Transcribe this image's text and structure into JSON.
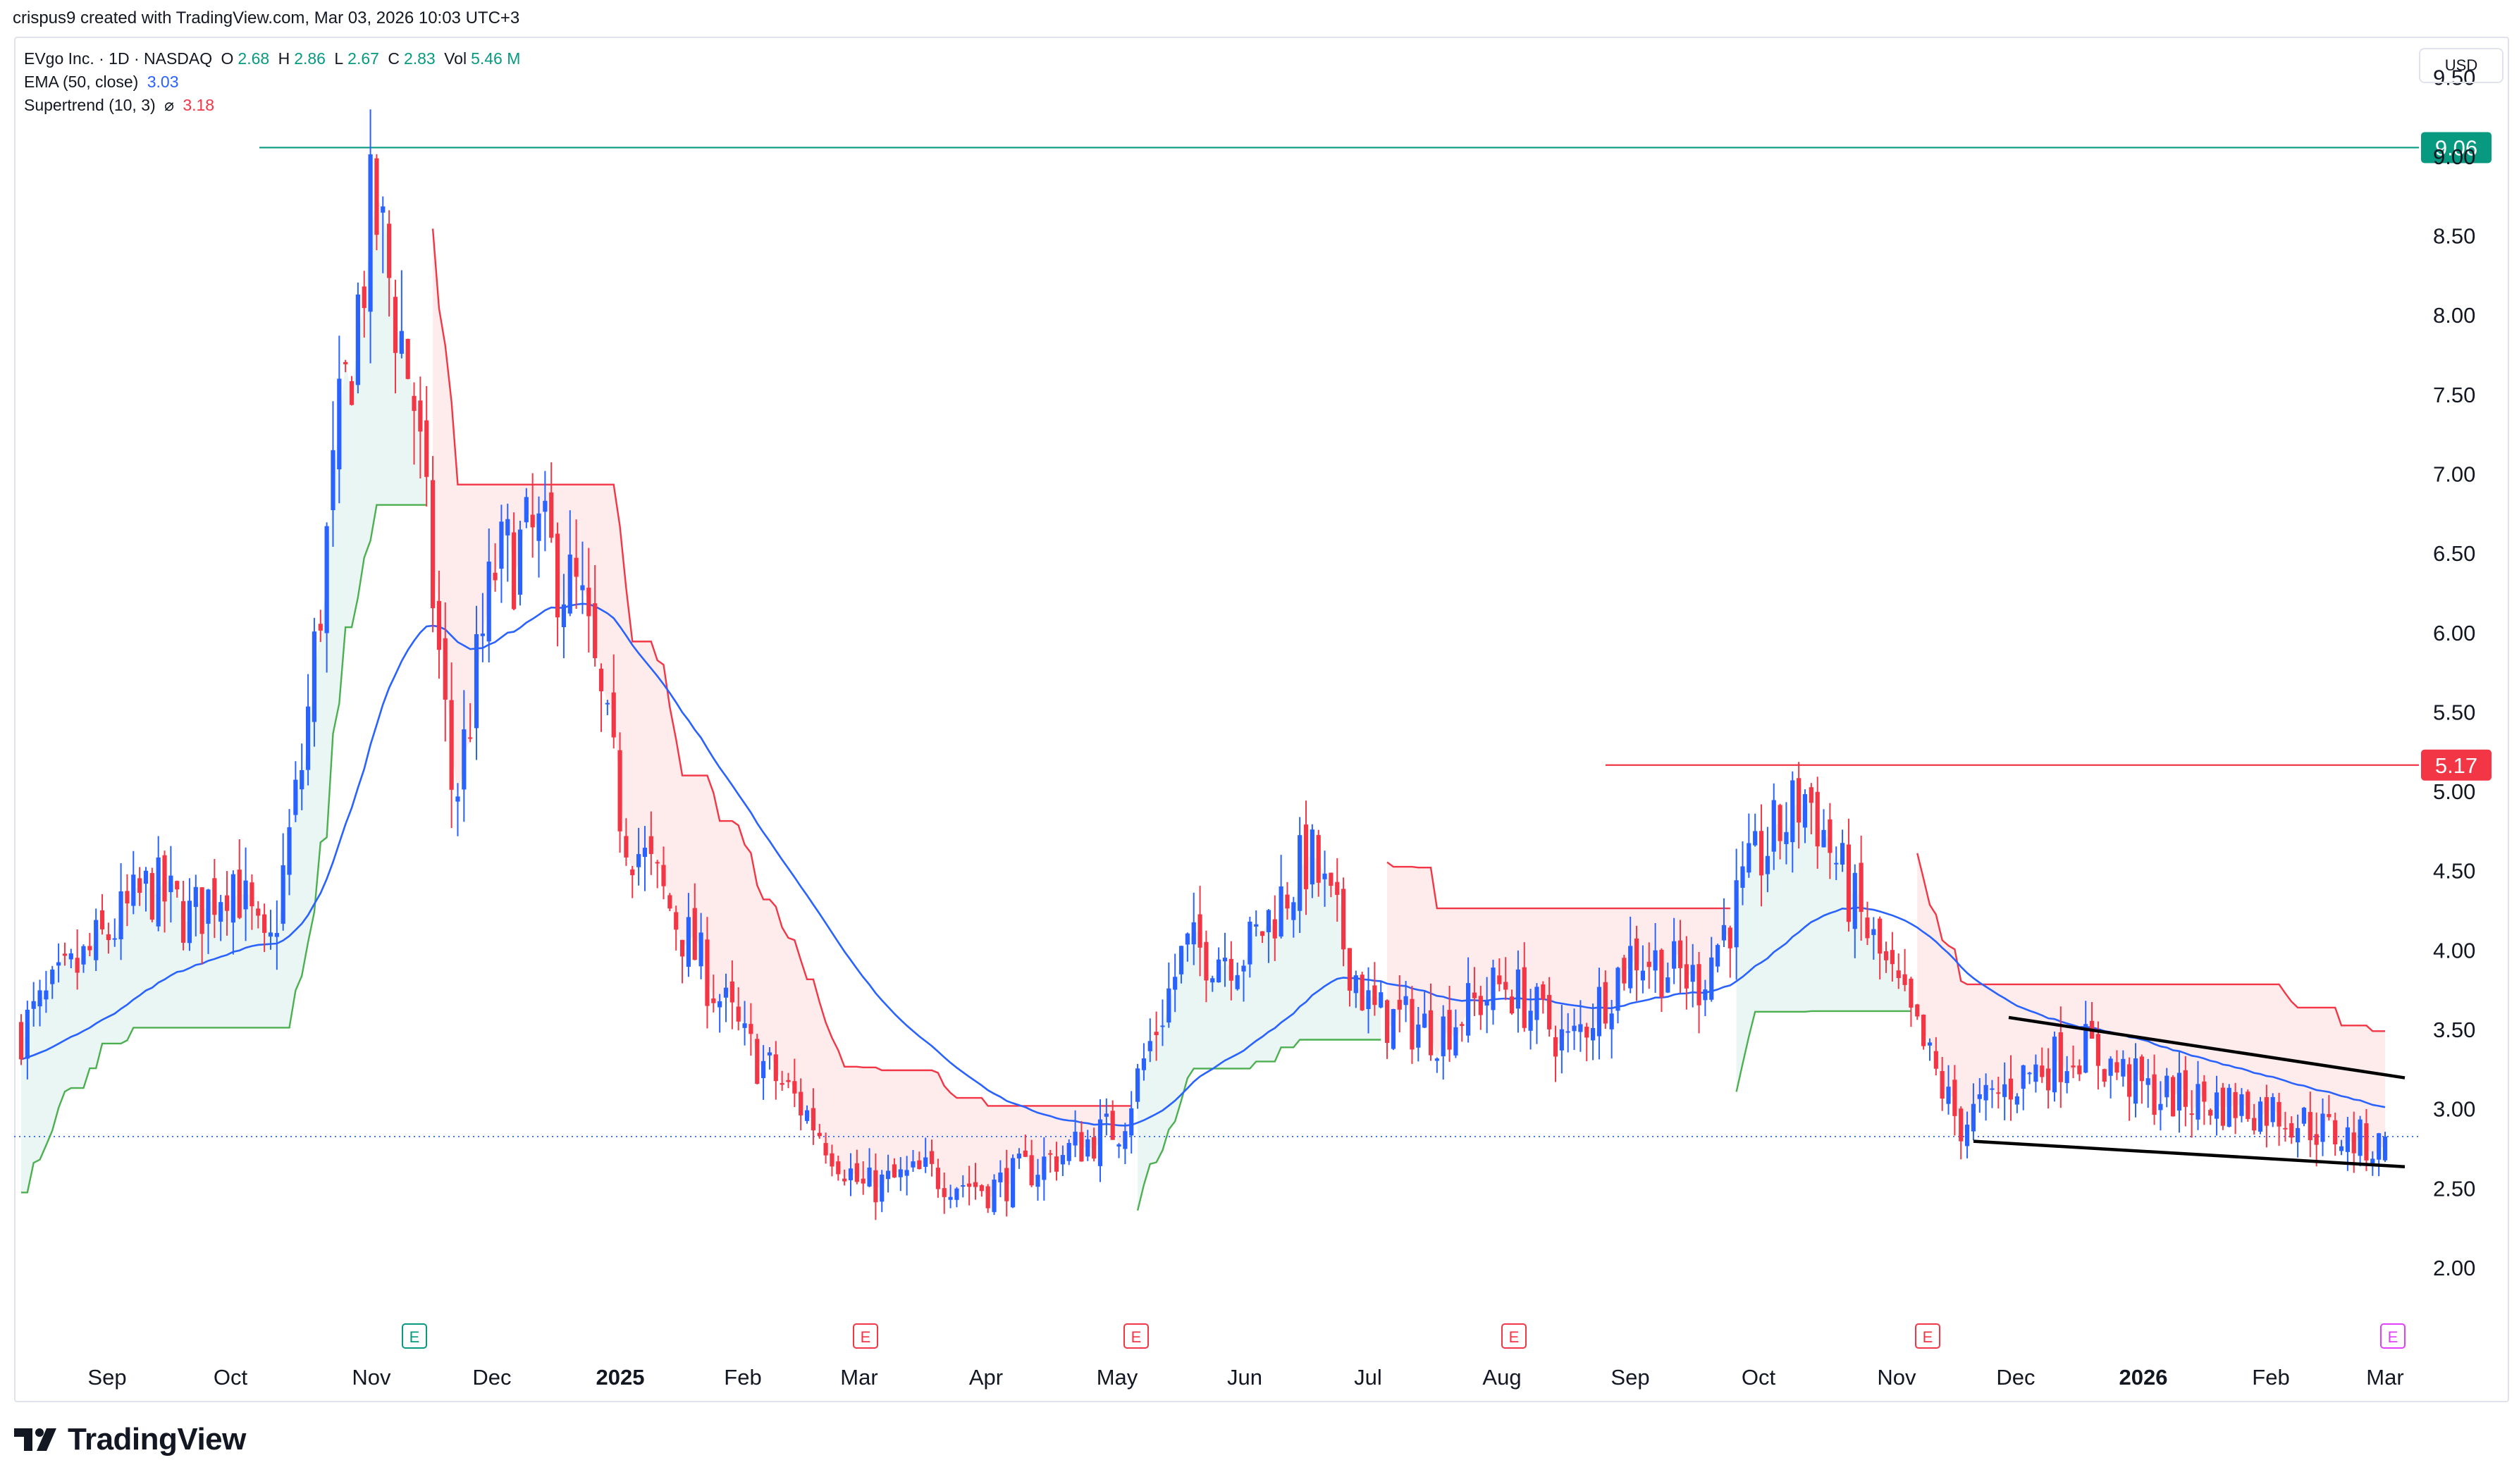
{
  "header": {
    "attribution": "crispus9 created with TradingView.com, Mar 03, 2026 10:03 UTC+3"
  },
  "legend": {
    "symbol": "EVgo Inc. · 1D · NASDAQ",
    "o_label": "O",
    "o_value": "2.68",
    "h_label": "H",
    "h_value": "2.86",
    "l_label": "L",
    "l_value": "2.67",
    "c_label": "C",
    "c_value": "2.83",
    "vol_label": "Vol",
    "vol_value": "5.46 M",
    "ema_label": "EMA (50, close)",
    "ema_value": "3.03",
    "st_label": "Supertrend (10, 3)",
    "st_icon": "hidden-eye-icon",
    "st_value": "3.18"
  },
  "currency": "USD",
  "footer": {
    "brand": "TradingView"
  },
  "colors": {
    "up": "#089981",
    "down": "#f23645",
    "candle_up": "#2962ff",
    "ema": "#2962ff"
  },
  "chart_data": {
    "type": "candlestick",
    "symbol": "EVGO",
    "interval": "1D",
    "ylim": [
      1.6,
      9.75
    ],
    "y_ticks": [
      2.0,
      2.5,
      3.0,
      3.5,
      4.0,
      4.5,
      5.0,
      5.5,
      6.0,
      6.5,
      7.0,
      7.5,
      8.0,
      8.5,
      9.0,
      9.5
    ],
    "x_ticks": [
      "Sep",
      "Oct",
      "Nov",
      "Dec",
      "2025",
      "Feb",
      "Mar",
      "Apr",
      "May",
      "Jun",
      "Jul",
      "Aug",
      "Sep",
      "Oct",
      "Nov",
      "Dec",
      "2026",
      "Feb",
      "Mar"
    ],
    "bold_ticks": [
      "2025",
      "2026"
    ],
    "horizontal_levels": [
      {
        "value": 9.06,
        "label": "9.06",
        "color": "#089981"
      },
      {
        "value": 5.17,
        "label": "5.17",
        "color": "#f23645"
      }
    ],
    "last_close": 2.83,
    "earnings_markers": [
      {
        "month": "Nov",
        "label": "E",
        "color": "#089981"
      },
      {
        "month": "Mar",
        "label": "E",
        "color": "#f23645"
      },
      {
        "month": "May",
        "label": "E",
        "color": "#f23645"
      },
      {
        "month": "Aug",
        "label": "E",
        "color": "#f23645"
      },
      {
        "month": "Nov",
        "label": "E",
        "color": "#f23645"
      },
      {
        "month": "Mar",
        "label": "E",
        "color": "#e040fb"
      }
    ],
    "price_path": [
      [
        "Sep",
        3.5
      ],
      [
        "Sep",
        4.4
      ],
      [
        "Sep",
        4.2
      ],
      [
        "Oct",
        4.5
      ],
      [
        "Oct",
        3.9
      ],
      [
        "Oct",
        5.2
      ],
      [
        "Oct",
        7.2
      ],
      [
        "Nov",
        8.7
      ],
      [
        "Nov",
        7.5
      ],
      [
        "Nov",
        4.9
      ],
      [
        "Dec",
        6.4
      ],
      [
        "Dec",
        6.6
      ],
      [
        "Dec",
        6.2
      ],
      [
        "2025",
        4.8
      ],
      [
        "2025",
        4.1
      ],
      [
        "Feb",
        3.4
      ],
      [
        "Feb",
        3.0
      ],
      [
        "Mar",
        2.5
      ],
      [
        "Mar",
        2.6
      ],
      [
        "Apr",
        2.5
      ],
      [
        "Apr",
        2.7
      ],
      [
        "May",
        2.9
      ],
      [
        "May",
        4.0
      ],
      [
        "Jun",
        4.0
      ],
      [
        "Jun",
        4.6
      ],
      [
        "Jul",
        3.6
      ],
      [
        "Jul",
        3.5
      ],
      [
        "Aug",
        3.8
      ],
      [
        "Aug",
        3.4
      ],
      [
        "Sep",
        4.0
      ],
      [
        "Sep",
        3.8
      ],
      [
        "Oct",
        4.6
      ],
      [
        "Oct",
        5.0
      ],
      [
        "Oct",
        4.3
      ],
      [
        "Nov",
        3.7
      ],
      [
        "Nov",
        2.9
      ],
      [
        "Dec",
        3.2
      ],
      [
        "Dec",
        3.4
      ],
      [
        "2026",
        3.1
      ],
      [
        "Feb",
        3.0
      ],
      [
        "Feb",
        2.85
      ],
      [
        "Mar",
        2.75
      ]
    ],
    "trendlines": [
      {
        "name": "upper",
        "from": [
          "Dec",
          3.58
        ],
        "to": [
          "Mar",
          3.2
        ]
      },
      {
        "name": "lower",
        "from": [
          "Nov",
          2.8
        ],
        "to": [
          "Mar",
          2.64
        ]
      }
    ]
  }
}
